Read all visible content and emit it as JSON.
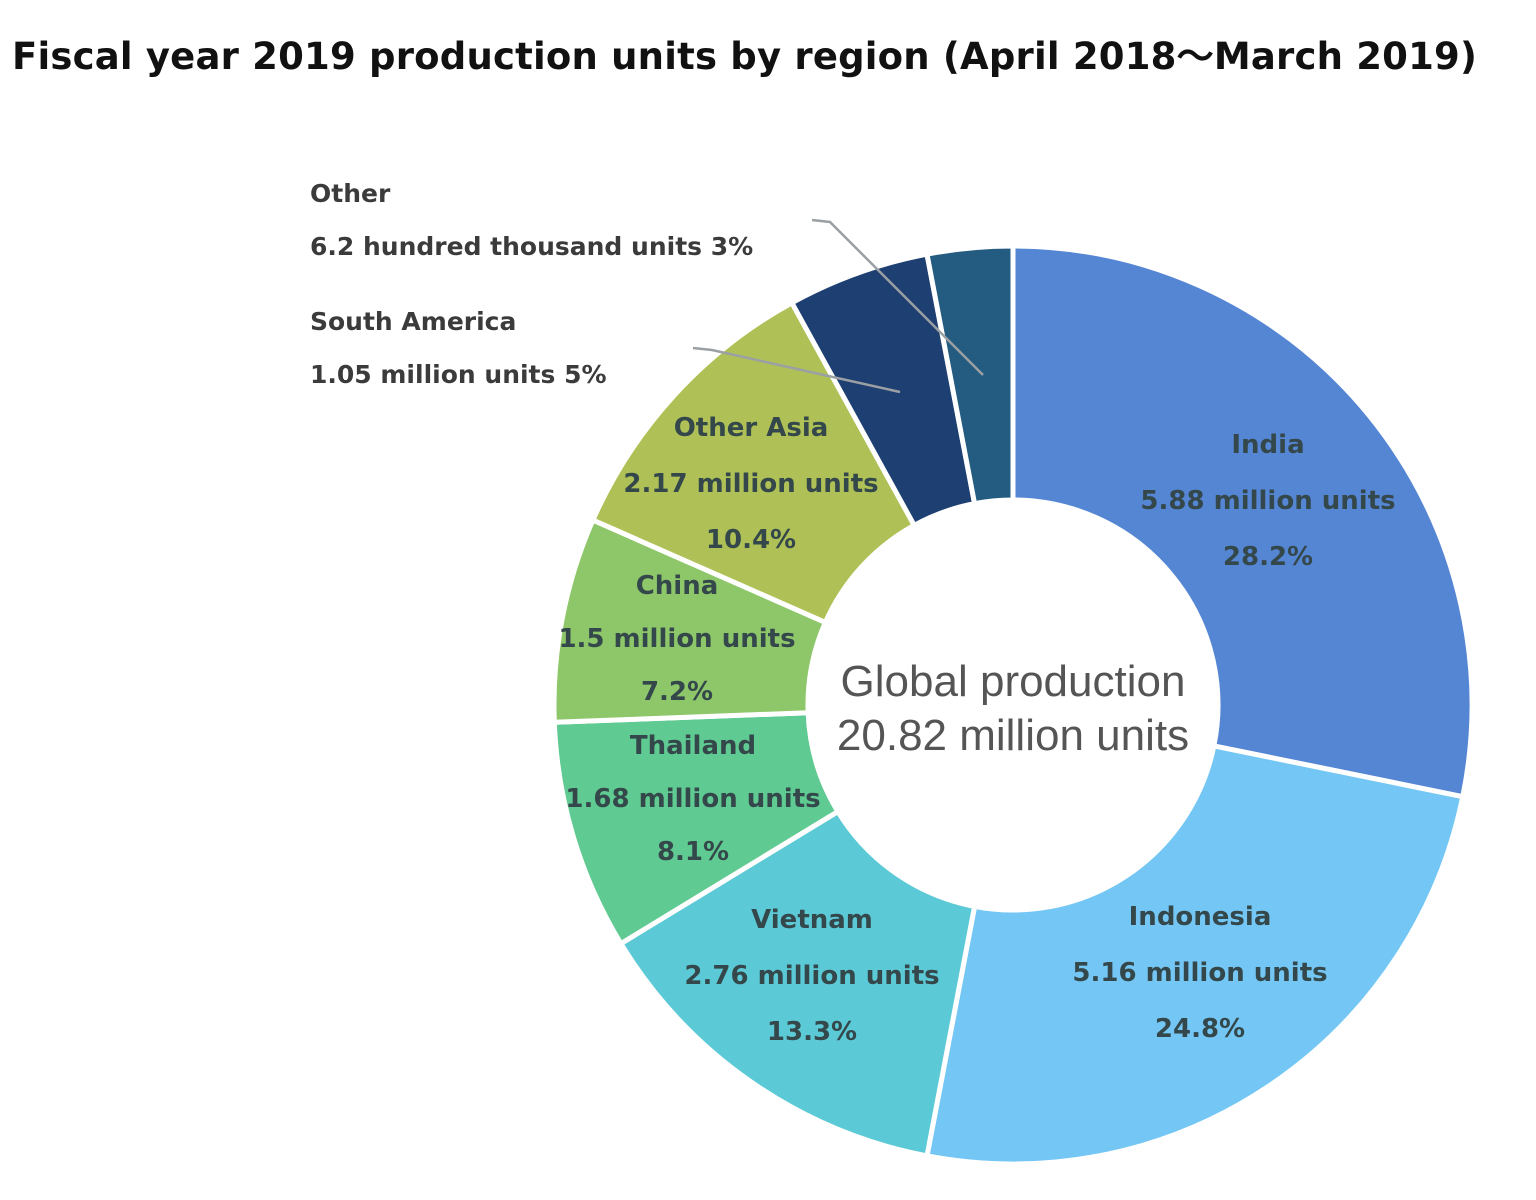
{
  "chart_data": {
    "type": "pie",
    "subtype": "donut",
    "title": "Fiscal year 2019 production units by region (April 2018～March 2019)",
    "center_label": {
      "line1": "Global production",
      "line2": "20.82 million units"
    },
    "total": 20.82,
    "unit": "million units",
    "slices": [
      {
        "name": "India",
        "value": 5.88,
        "units_label": "5.88 million units",
        "percent": 28.2,
        "percent_label": "28.2%",
        "color": "#5586d4"
      },
      {
        "name": "Indonesia",
        "value": 5.16,
        "units_label": "5.16 million units",
        "percent": 24.8,
        "percent_label": "24.8%",
        "color": "#74c7f4"
      },
      {
        "name": "Vietnam",
        "value": 2.76,
        "units_label": "2.76 million units",
        "percent": 13.3,
        "percent_label": "13.3%",
        "color": "#5ccad6"
      },
      {
        "name": "Thailand",
        "value": 1.68,
        "units_label": "1.68 million units",
        "percent": 8.1,
        "percent_label": "8.1%",
        "color": "#5fca91"
      },
      {
        "name": "China",
        "value": 1.5,
        "units_label": "1.5 million units",
        "percent": 7.2,
        "percent_label": "7.2%",
        "color": "#8ec76a"
      },
      {
        "name": "Other Asia",
        "value": 2.17,
        "units_label": "2.17 million units",
        "percent": 10.4,
        "percent_label": "10.4%",
        "color": "#afc156"
      },
      {
        "name": "South America",
        "value": 1.05,
        "units_label": "1.05 million units 5%",
        "percent": 5,
        "percent_label": "5%",
        "color": "#1d3f72"
      },
      {
        "name": "Other",
        "value": 0.62,
        "units_label": "6.2 hundred thousand units 3%",
        "percent": 3,
        "percent_label": "3%",
        "color": "#245b80"
      }
    ]
  }
}
